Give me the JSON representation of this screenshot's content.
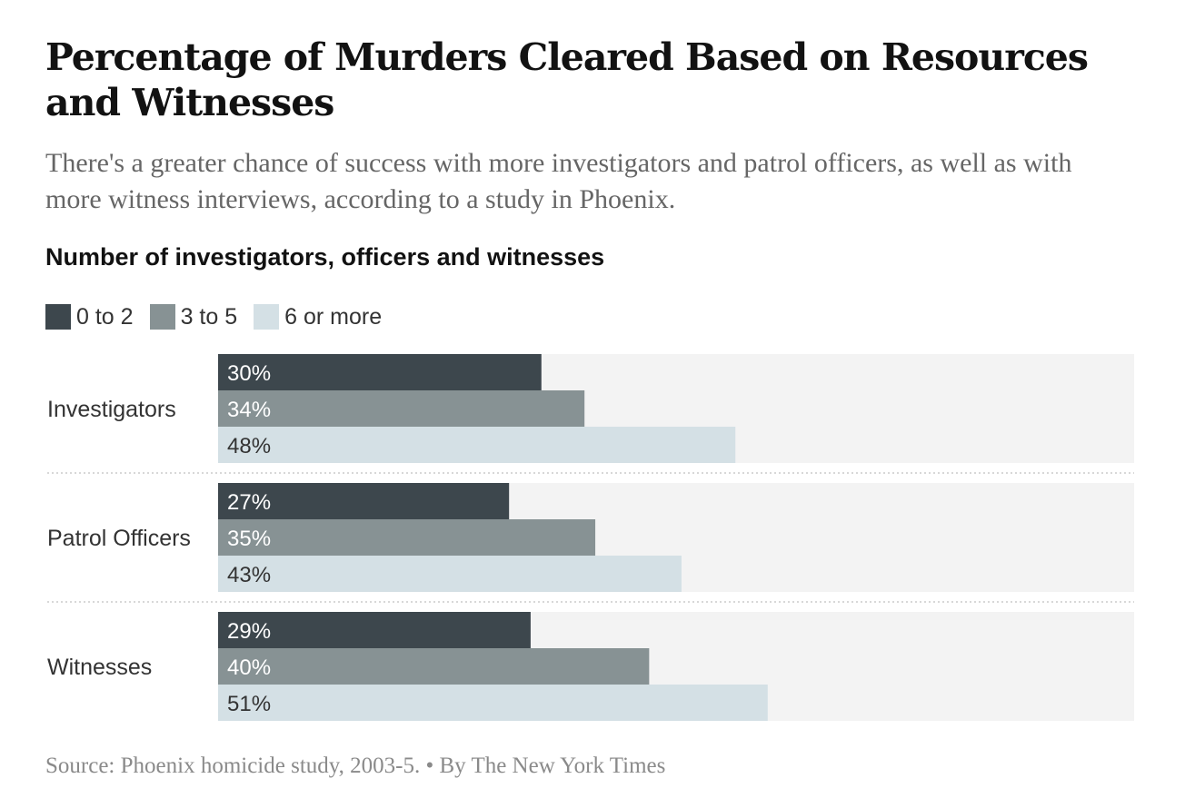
{
  "title": "Percentage of Murders Cleared Based on Resources and Witnesses",
  "subtitle": "There's a greater chance of success with more investigators and patrol officers, as well as with more witness interviews, according to a study in Phoenix.",
  "chart_label": "Number of investigators, officers and witnesses",
  "legend": [
    {
      "label": "0 to 2",
      "color": "#3d474d"
    },
    {
      "label": "3 to 5",
      "color": "#879294"
    },
    {
      "label": "6 or more",
      "color": "#d4e0e5"
    }
  ],
  "source": "Source: Phoenix homicide study, 2003-5. • By The New York Times",
  "chart_data": {
    "type": "bar",
    "orientation": "horizontal",
    "categories": [
      "Investigators",
      "Patrol Officers",
      "Witnesses"
    ],
    "series": [
      {
        "name": "0 to 2",
        "values": [
          30,
          27,
          29
        ],
        "color": "#3d474d",
        "label_color": "#ffffff"
      },
      {
        "name": "3 to 5",
        "values": [
          34,
          35,
          40
        ],
        "color": "#879294",
        "label_color": "#ffffff"
      },
      {
        "name": "6 or more",
        "values": [
          48,
          43,
          51
        ],
        "color": "#d4e0e5",
        "label_color": "#333333"
      }
    ],
    "value_suffix": "%",
    "xlim": [
      0,
      85
    ],
    "background_color": "#f3f3f3",
    "grid": false
  }
}
